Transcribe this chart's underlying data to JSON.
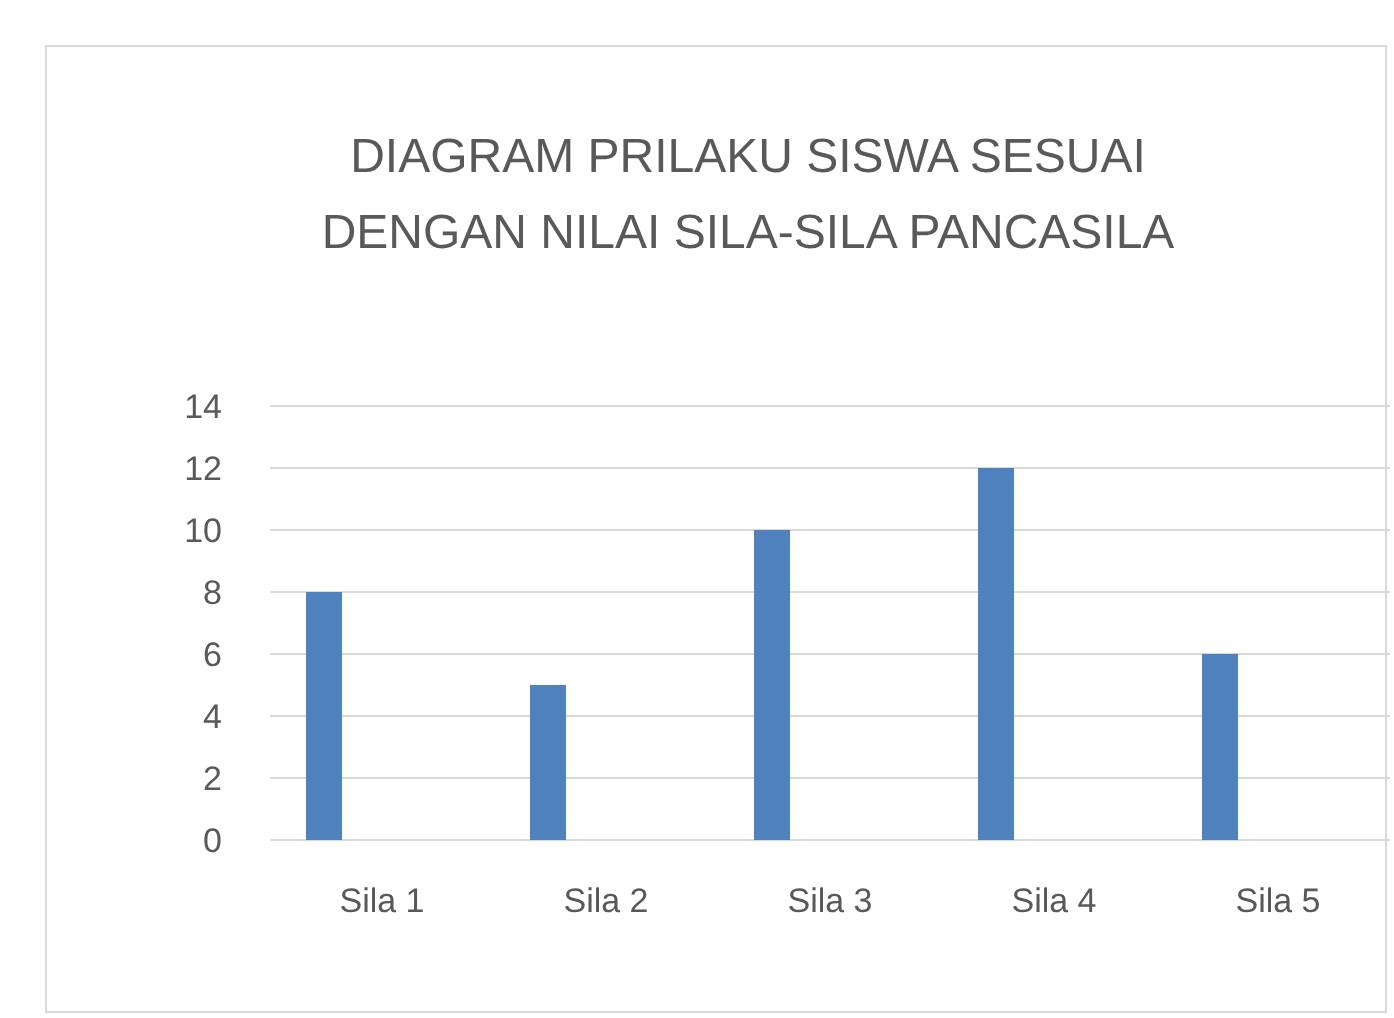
{
  "chart_data": {
    "type": "bar",
    "title": "DIAGRAM PRILAKU SISWA SESUAI DENGAN NILAI SILA-SILA PANCASILA",
    "categories": [
      "Sila 1",
      "Sila 2",
      "Sila 3",
      "Sila 4",
      "Sila 5"
    ],
    "values": [
      8,
      5,
      10,
      12,
      6
    ],
    "color": "#4f81bd",
    "ylim": [
      0,
      14
    ],
    "yticks": [
      0,
      2,
      4,
      6,
      8,
      10,
      12,
      14
    ],
    "grid": "y"
  }
}
